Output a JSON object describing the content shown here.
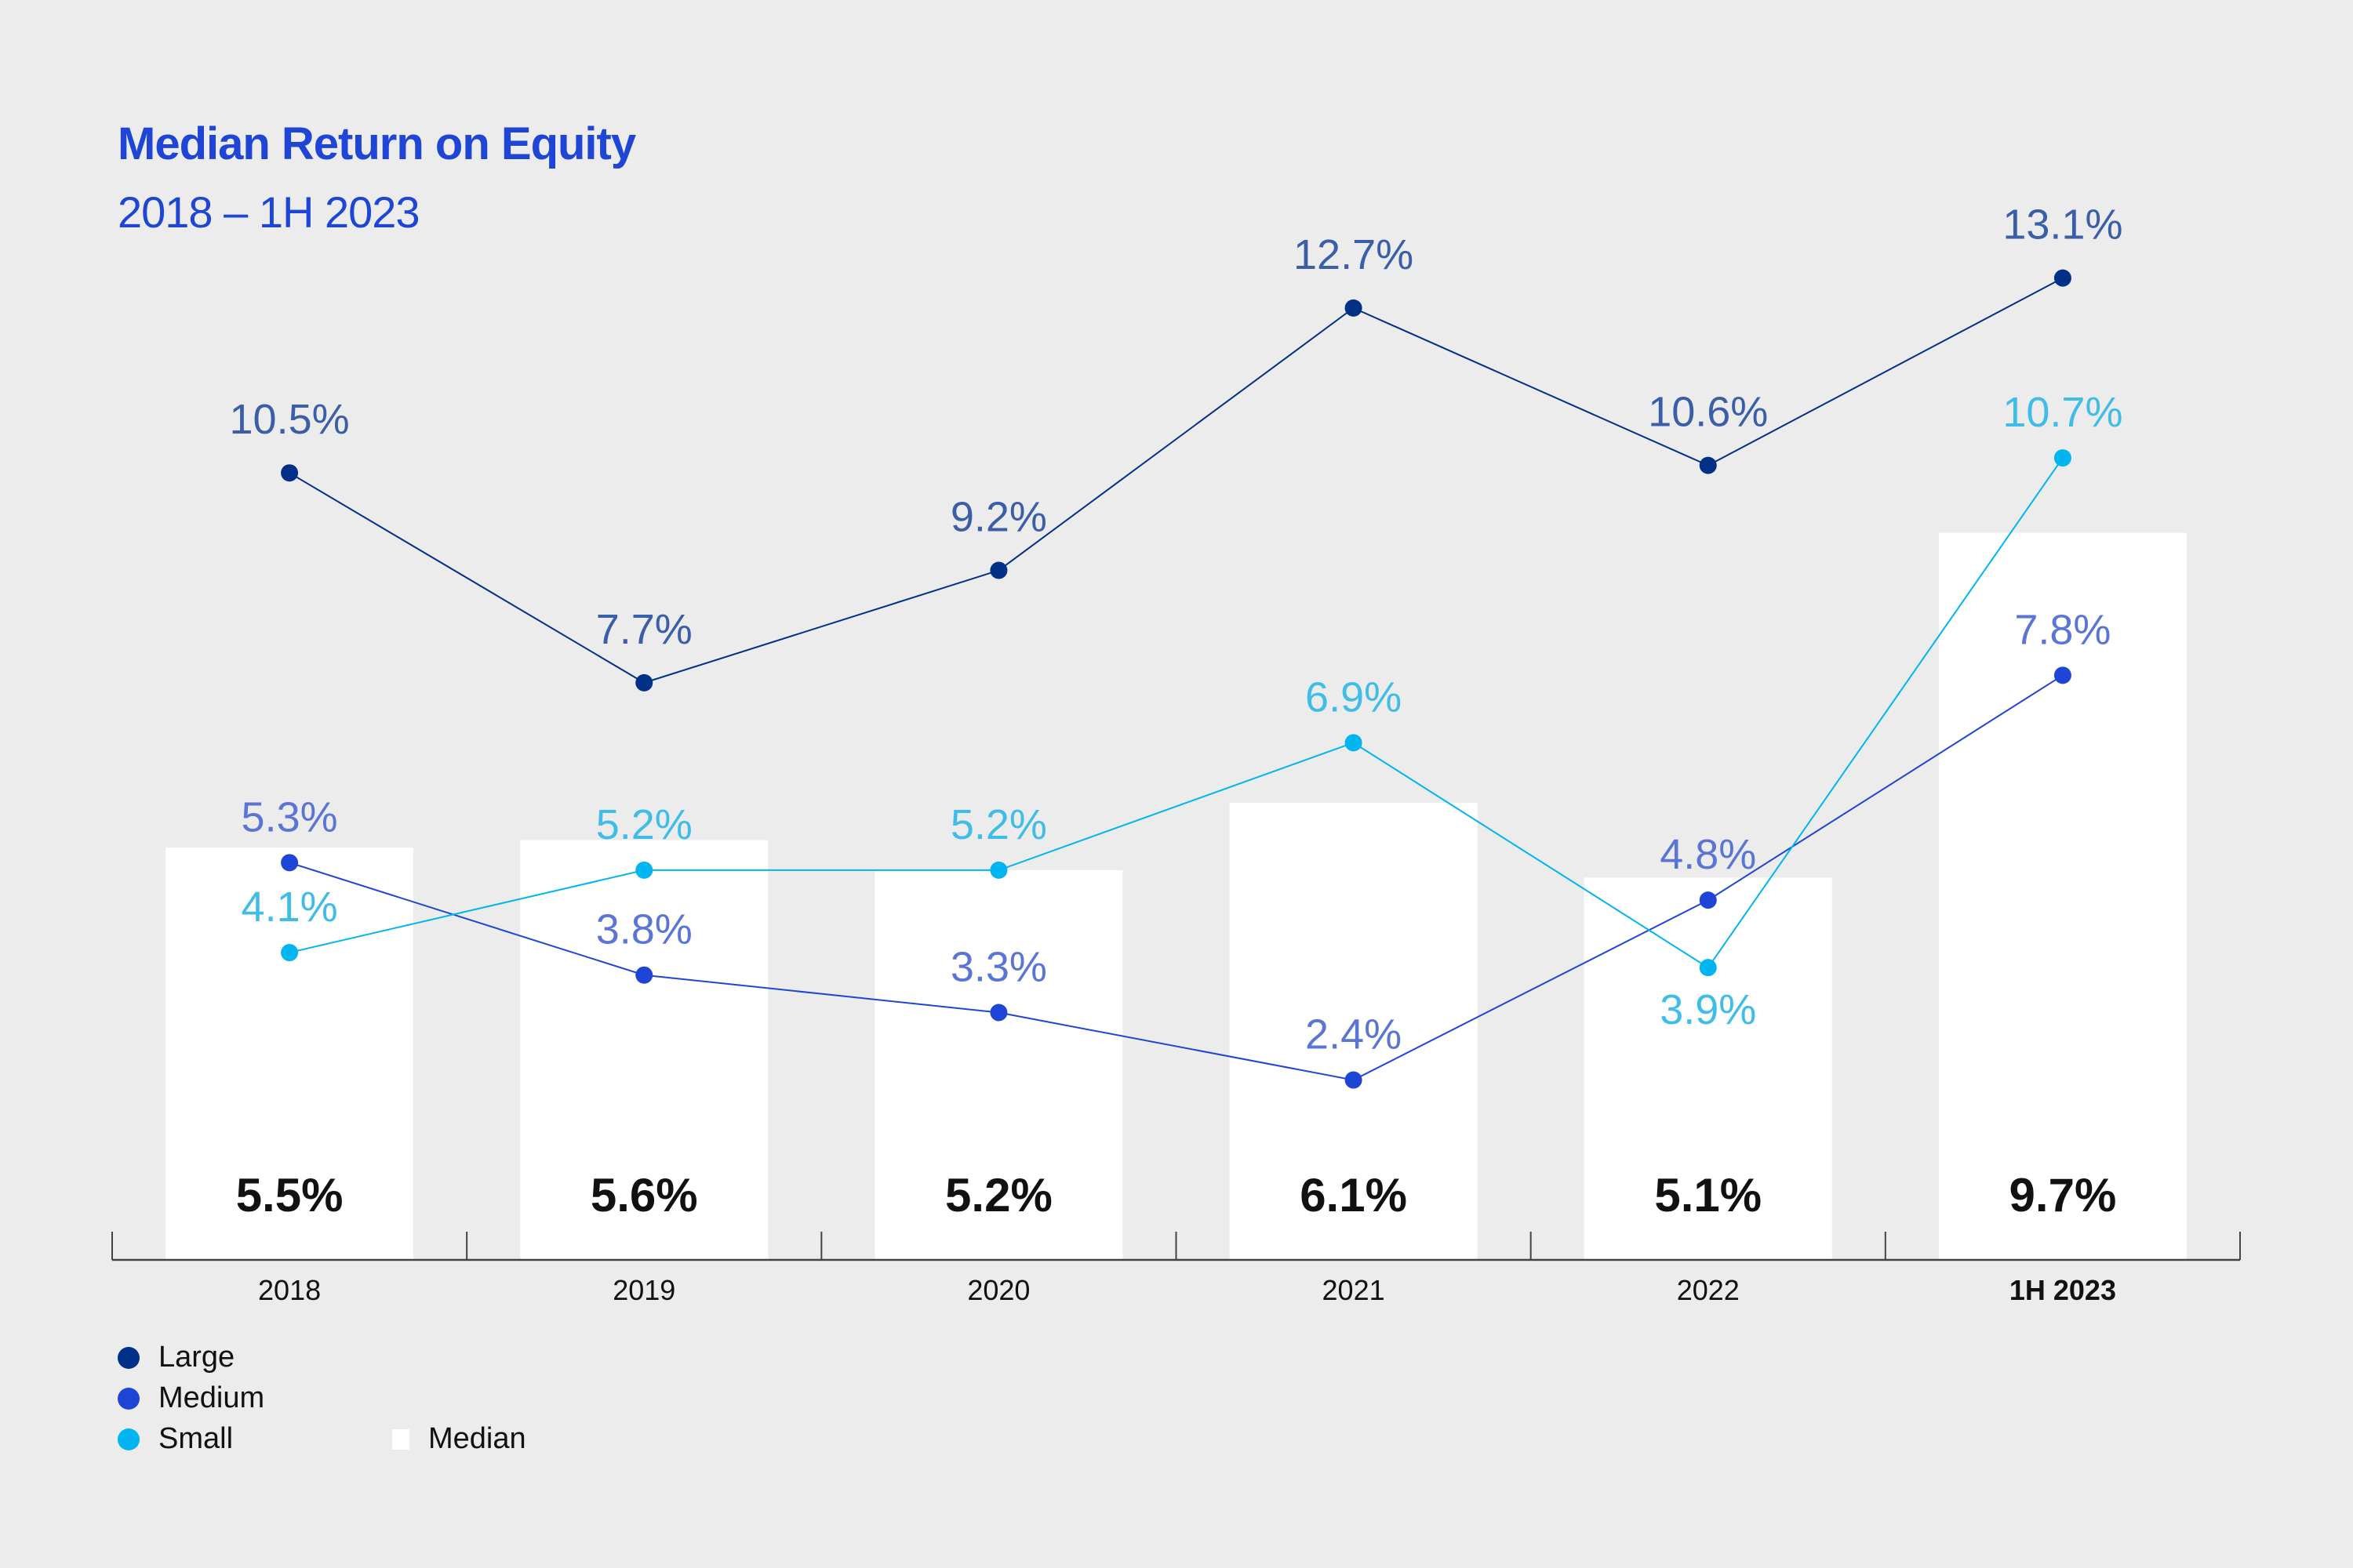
{
  "header": {
    "title": "Median Return on Equity",
    "subtitle": "2018 – 1H 2023"
  },
  "colors": {
    "background": "#ebeceb",
    "title": "#1f45d6",
    "large_marker": "#003087",
    "large_label": "#3a5fa8",
    "medium_marker": "#1f45d6",
    "medium_label": "#5a75d6",
    "small_marker": "#00b5f0",
    "small_label": "#3fbde8",
    "median_bar": "#ffffff",
    "axis": "#444444"
  },
  "chart_data": {
    "type": "bar",
    "title": "Median Return on Equity",
    "subtitle": "2018 – 1H 2023",
    "xlabel": "",
    "ylabel": "",
    "ylim": [
      0,
      14
    ],
    "grid": false,
    "categories": [
      "2018",
      "2019",
      "2020",
      "2021",
      "2022",
      "1H 2023"
    ],
    "bold_categories": [
      "1H 2023"
    ],
    "bars": {
      "name": "Median",
      "values": [
        5.5,
        5.6,
        5.2,
        6.1,
        5.1,
        9.7
      ],
      "labels": [
        "5.5%",
        "5.6%",
        "5.2%",
        "6.1%",
        "5.1%",
        "9.7%"
      ]
    },
    "series": [
      {
        "name": "Large",
        "type": "line",
        "values": [
          10.5,
          7.7,
          9.2,
          12.7,
          10.6,
          13.1
        ],
        "labels": [
          "10.5%",
          "7.7%",
          "9.2%",
          "12.7%",
          "10.6%",
          "13.1%"
        ]
      },
      {
        "name": "Medium",
        "type": "line",
        "values": [
          5.3,
          3.8,
          3.3,
          2.4,
          4.8,
          7.8
        ],
        "labels": [
          "5.3%",
          "3.8%",
          "3.3%",
          "2.4%",
          "4.8%",
          "7.8%"
        ]
      },
      {
        "name": "Small",
        "type": "line",
        "values": [
          4.1,
          5.2,
          5.2,
          6.9,
          3.9,
          10.7
        ],
        "labels": [
          "4.1%",
          "5.2%",
          "5.2%",
          "6.9%",
          "3.9%",
          "10.7%"
        ]
      }
    ],
    "legend": {
      "position": "bottom-left",
      "items": [
        "Large",
        "Medium",
        "Small",
        "Median"
      ]
    }
  }
}
